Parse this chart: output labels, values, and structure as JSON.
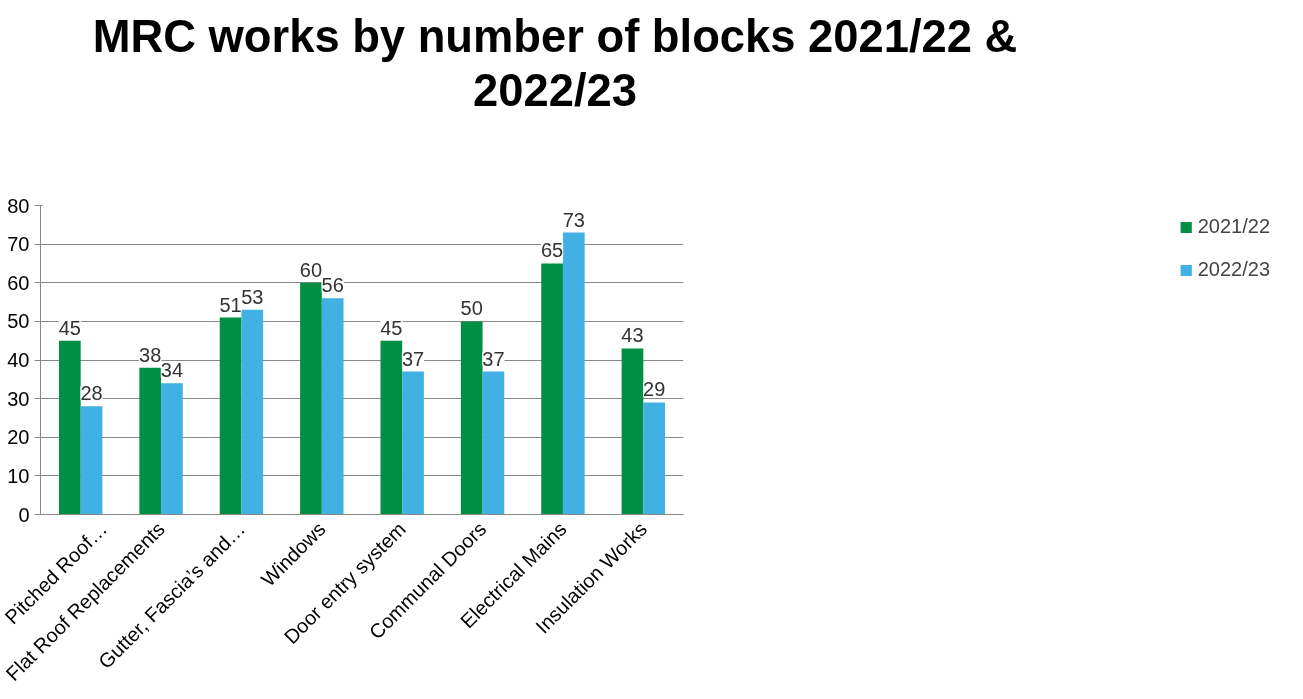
{
  "chart_data": {
    "type": "bar",
    "title": "MRC works by number of blocks 2021/22 & 2022/23",
    "categories": [
      "Pitched Roof…",
      "Flat Roof Replacements",
      "Gutter, Fascia’s and…",
      "Windows",
      "Door entry system",
      "Communal Doors",
      "Electrical Mains",
      "Insulation Works"
    ],
    "series": [
      {
        "name": "2021/22",
        "color": "#008f45",
        "values": [
          45,
          38,
          51,
          60,
          45,
          50,
          65,
          43
        ]
      },
      {
        "name": "2022/23",
        "color": "#41b0e2",
        "values": [
          28,
          34,
          53,
          56,
          37,
          37,
          73,
          29
        ]
      }
    ],
    "ylim": [
      0,
      80
    ],
    "yticks": [
      0,
      10,
      20,
      30,
      40,
      50,
      60,
      70,
      80
    ],
    "grid": "y",
    "legend": "right",
    "data_labels": true
  }
}
